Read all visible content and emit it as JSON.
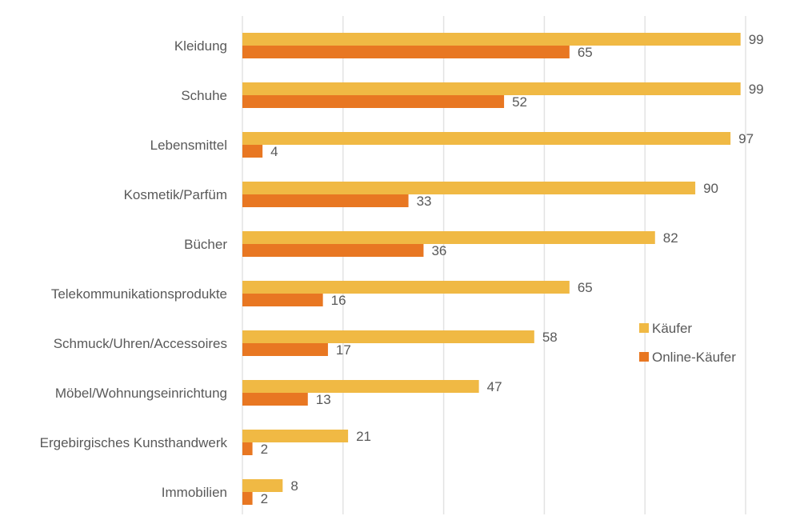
{
  "chart_data": {
    "type": "bar",
    "orientation": "horizontal",
    "title": "",
    "xlabel": "",
    "ylabel": "",
    "xlim": [
      0,
      100
    ],
    "grid": true,
    "legend_position": "right",
    "categories": [
      "Kleidung",
      "Schuhe",
      "Lebensmittel",
      "Kosmetik/Parfüm",
      "Bücher",
      "Telekommunikationsprodukte",
      "Schmuck/Uhren/Accessoires",
      "Möbel/Wohnungseinrichtung",
      "Ergebirgisches Kunsthandwerk",
      "Immobilien"
    ],
    "series": [
      {
        "name": "Käufer",
        "color": "#F0B944",
        "values": [
          99,
          99,
          97,
          90,
          82,
          65,
          58,
          47,
          21,
          8
        ]
      },
      {
        "name": "Online-Käufer",
        "color": "#E87722",
        "values": [
          65,
          52,
          4,
          33,
          36,
          16,
          17,
          13,
          2,
          2
        ]
      }
    ]
  }
}
